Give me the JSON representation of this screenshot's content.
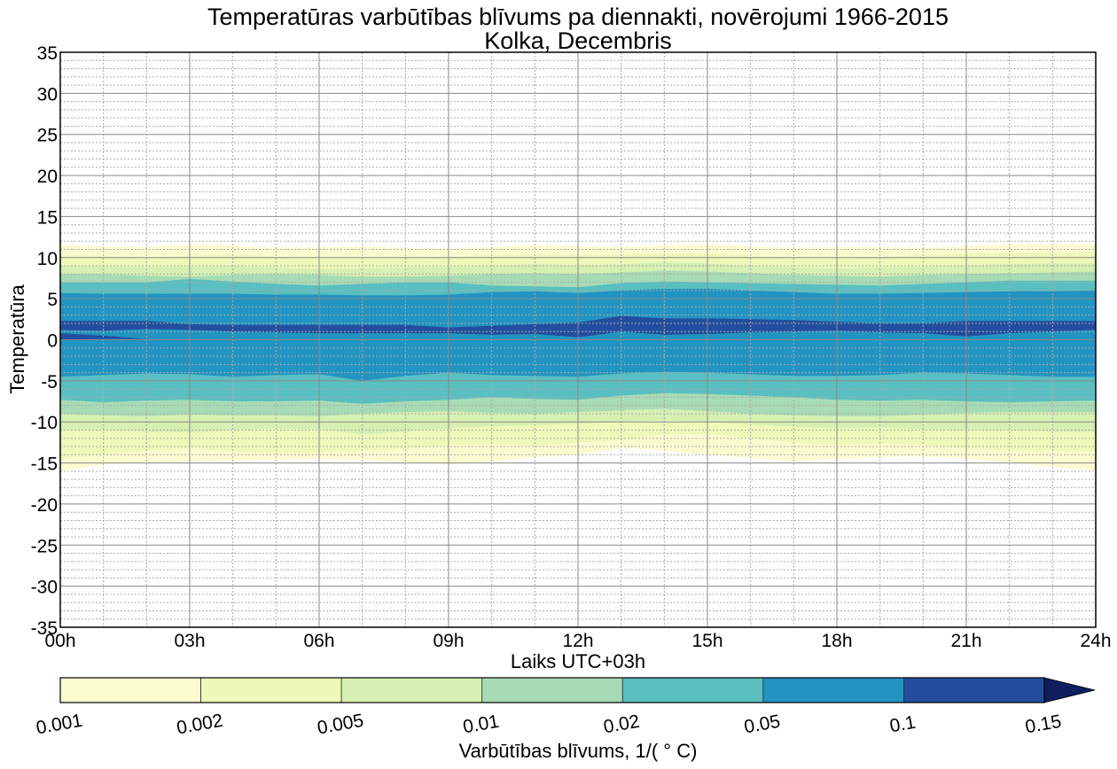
{
  "chart_data": {
    "type": "contourf",
    "title": "Temperatūras varbūtības blīvums pa diennakti, novērojumi 1966-2015",
    "subtitle": "Kolka, Decembris",
    "xlabel": "Laiks UTC+03h",
    "ylabel": "Temperatūra",
    "xlim": [
      0,
      24
    ],
    "ylim": [
      -35,
      35
    ],
    "x_ticks": [
      0,
      3,
      6,
      9,
      12,
      15,
      18,
      21,
      24
    ],
    "x_tick_labels": [
      "00h",
      "03h",
      "06h",
      "09h",
      "12h",
      "15h",
      "18h",
      "21h",
      "24h"
    ],
    "y_ticks": [
      -35,
      -30,
      -25,
      -20,
      -15,
      -10,
      -5,
      0,
      5,
      10,
      15,
      20,
      25,
      30,
      35
    ],
    "y_tick_labels": [
      "-35",
      "-30",
      "-25",
      "-20",
      "-15",
      "-10",
      "-5",
      "0",
      "5",
      "10",
      "15",
      "20",
      "25",
      "30",
      "35"
    ],
    "grid": {
      "major": true,
      "minor": true,
      "x_minor_step": 1,
      "y_minor_step": 1
    },
    "colorbar": {
      "label": "Varbūtības blīvums, 1/($^\\circ$C)",
      "label_display": "Varbūtības blīvums, 1/( ° C)",
      "levels": [
        0.001,
        0.002,
        0.005,
        0.01,
        0.02,
        0.05,
        0.1,
        0.15
      ],
      "level_labels": [
        "0.001",
        "0.002",
        "0.005",
        "0.01",
        "0.02",
        "0.05",
        "0.1",
        "0.15"
      ],
      "colors": [
        "#fafcd0",
        "#eef8b8",
        "#d6efb2",
        "#a7dbb5",
        "#5abfc0",
        "#2294c1",
        "#234ea0",
        "#0d1f5d"
      ],
      "extend": "max",
      "placement": "bottom"
    },
    "hours": [
      0,
      1,
      2,
      3,
      4,
      5,
      6,
      7,
      8,
      9,
      10,
      11,
      12,
      13,
      14,
      15,
      16,
      17,
      18,
      19,
      20,
      21,
      22,
      23,
      24
    ],
    "bands": [
      {
        "level": 0.001,
        "upper": [
          11.5,
          11.4,
          11.3,
          11.6,
          11.5,
          11.2,
          11.3,
          11.4,
          11.2,
          11.1,
          11.3,
          11.5,
          11.4,
          11.3,
          11.5,
          11.6,
          11.4,
          11.2,
          11.3,
          11.3,
          11.2,
          11.4,
          11.6,
          11.6,
          11.6
        ],
        "lower": [
          -16.0,
          -15.2,
          -15.0,
          -14.8,
          -14.7,
          -14.6,
          -14.5,
          -14.6,
          -14.9,
          -15.2,
          -14.8,
          -14.3,
          -14.0,
          -13.2,
          -13.5,
          -14.0,
          -14.4,
          -14.8,
          -14.5,
          -14.3,
          -14.2,
          -14.5,
          -14.9,
          -15.5,
          -15.9
        ]
      },
      {
        "level": 0.002,
        "upper": [
          10.3,
          10.2,
          10.0,
          10.2,
          10.4,
          10.1,
          9.9,
          9.9,
          10.0,
          10.1,
          10.3,
          10.4,
          10.3,
          10.4,
          10.5,
          10.5,
          10.2,
          10.0,
          10.0,
          10.1,
          10.3,
          10.5,
          10.6,
          10.6,
          10.7
        ],
        "lower": [
          -14.5,
          -14.0,
          -13.5,
          -13.2,
          -13.6,
          -13.8,
          -13.7,
          -13.5,
          -13.3,
          -12.8,
          -12.7,
          -12.9,
          -12.5,
          -12.2,
          -11.5,
          -11.5,
          -12.0,
          -12.5,
          -12.8,
          -12.6,
          -12.8,
          -13.2,
          -13.5,
          -13.5,
          -13.6
        ]
      },
      {
        "level": 0.005,
        "upper": [
          9.0,
          9.0,
          8.8,
          8.9,
          9.0,
          8.8,
          8.6,
          8.7,
          8.8,
          8.9,
          9.0,
          9.2,
          9.1,
          9.2,
          9.4,
          9.3,
          9.0,
          8.8,
          8.7,
          8.8,
          8.9,
          9.1,
          9.2,
          9.3,
          9.3
        ],
        "lower": [
          -11.0,
          -11.0,
          -11.2,
          -11.3,
          -11.0,
          -10.8,
          -10.9,
          -11.5,
          -11.2,
          -10.8,
          -10.5,
          -10.4,
          -10.2,
          -10.0,
          -9.8,
          -10.0,
          -10.3,
          -10.6,
          -10.8,
          -10.7,
          -10.9,
          -11.0,
          -11.0,
          -11.2,
          -11.2
        ]
      },
      {
        "level": 0.01,
        "upper": [
          8.0,
          8.0,
          7.8,
          7.7,
          7.9,
          8.0,
          7.9,
          7.7,
          7.7,
          7.8,
          8.0,
          8.1,
          8.0,
          8.2,
          8.4,
          8.3,
          8.1,
          7.9,
          7.8,
          7.7,
          7.9,
          8.0,
          8.1,
          8.2,
          8.3
        ],
        "lower": [
          -9.0,
          -9.2,
          -9.3,
          -9.1,
          -9.2,
          -9.2,
          -9.3,
          -9.0,
          -8.8,
          -8.7,
          -8.9,
          -9.0,
          -8.8,
          -8.6,
          -8.4,
          -8.7,
          -9.0,
          -9.2,
          -9.3,
          -9.3,
          -9.1,
          -8.9,
          -8.8,
          -8.8,
          -8.8
        ]
      },
      {
        "level": 0.02,
        "upper": [
          7.0,
          7.0,
          7.0,
          7.4,
          7.1,
          6.8,
          6.6,
          6.8,
          7.0,
          7.0,
          6.6,
          6.5,
          6.4,
          6.9,
          7.1,
          7.0,
          6.9,
          6.8,
          6.7,
          6.6,
          6.8,
          7.0,
          7.2,
          7.2,
          7.2
        ],
        "lower": [
          -7.3,
          -7.6,
          -7.4,
          -7.3,
          -7.5,
          -7.5,
          -7.4,
          -7.8,
          -7.5,
          -7.3,
          -7.0,
          -7.2,
          -7.3,
          -6.8,
          -6.5,
          -6.6,
          -6.8,
          -7.0,
          -7.3,
          -7.4,
          -7.3,
          -7.5,
          -7.6,
          -7.5,
          -7.4
        ]
      },
      {
        "level": 0.05,
        "upper": [
          5.7,
          5.6,
          5.6,
          5.6,
          5.6,
          5.5,
          5.5,
          5.4,
          5.4,
          5.5,
          5.8,
          5.9,
          5.7,
          6.0,
          6.2,
          6.2,
          6.0,
          5.8,
          5.6,
          5.6,
          5.7,
          5.8,
          5.9,
          5.9,
          6.0
        ],
        "lower": [
          -4.5,
          -4.3,
          -4.1,
          -4.2,
          -4.5,
          -4.3,
          -4.2,
          -5.0,
          -4.4,
          -4.0,
          -4.3,
          -4.4,
          -4.5,
          -4.1,
          -3.9,
          -4.0,
          -4.2,
          -4.4,
          -4.4,
          -4.3,
          -4.0,
          -4.1,
          -4.3,
          -4.5,
          -4.5
        ]
      },
      {
        "level": 0.1,
        "segments": [
          {
            "upper": [
              2.3,
              2.3,
              2.3,
              1.9,
              1.8,
              1.8,
              1.8,
              1.8,
              1.8,
              1.5,
              1.7,
              1.9,
              2.1,
              2.9,
              2.6,
              2.6,
              2.5,
              2.4,
              2.2,
              2.0,
              2.0,
              2.3,
              2.3,
              2.3,
              2.3
            ],
            "lower": [
              1.2,
              1.1,
              1.3,
              1.2,
              1.0,
              0.9,
              0.8,
              0.8,
              0.8,
              0.8,
              0.6,
              0.7,
              0.3,
              1.0,
              0.6,
              0.7,
              0.9,
              1.0,
              1.1,
              0.9,
              0.8,
              0.4,
              0.8,
              1.0,
              1.2
            ]
          },
          {
            "upper": [
              0.8,
              0.5,
              0.1
            ],
            "lower": [
              0.0,
              0.1,
              0.1
            ],
            "hours": [
              0,
              1,
              2
            ]
          }
        ]
      }
    ]
  }
}
